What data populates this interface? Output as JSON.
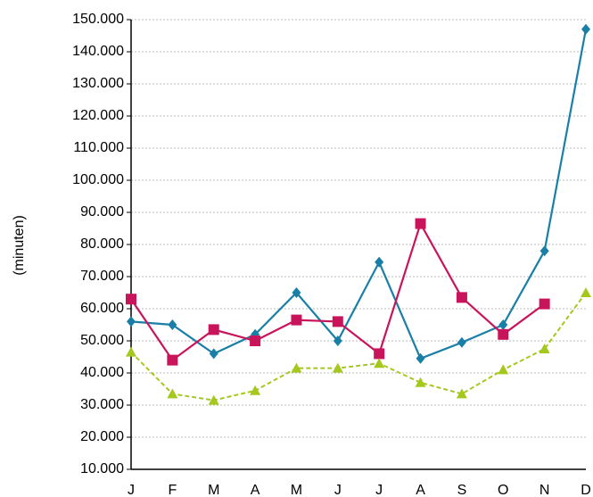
{
  "chart_data": {
    "type": "line",
    "y_label": "(minuten)",
    "categories": [
      "J",
      "F",
      "M",
      "A",
      "M",
      "J",
      "J",
      "A",
      "S",
      "O",
      "N",
      "D"
    ],
    "series": [
      {
        "color": "#1a7fa6",
        "marker": "diamond",
        "dash": false,
        "values": [
          56000,
          55000,
          46000,
          52000,
          65000,
          50000,
          74500,
          44500,
          49500,
          55000,
          78000,
          147000
        ]
      },
      {
        "color": "#c8145a",
        "marker": "square",
        "dash": false,
        "values": [
          63000,
          44000,
          53500,
          50000,
          56500,
          56000,
          46000,
          86500,
          63500,
          52000,
          61500,
          null
        ]
      },
      {
        "color": "#a5c81e",
        "marker": "triangle",
        "dash": true,
        "values": [
          46500,
          33500,
          31500,
          34500,
          41500,
          41500,
          43000,
          37000,
          33500,
          41000,
          47500,
          65000
        ]
      }
    ],
    "ylim": [
      10000,
      150000
    ],
    "yticks": [
      {
        "value": 10000,
        "label": "10.000"
      },
      {
        "value": 20000,
        "label": "20.000"
      },
      {
        "value": 30000,
        "label": "30.000"
      },
      {
        "value": 40000,
        "label": "40.000"
      },
      {
        "value": 50000,
        "label": "50.000"
      },
      {
        "value": 60000,
        "label": "60.000"
      },
      {
        "value": 70000,
        "label": "70.000"
      },
      {
        "value": 80000,
        "label": "80.000"
      },
      {
        "value": 90000,
        "label": "90.000"
      },
      {
        "value": 100000,
        "label": "100.000"
      },
      {
        "value": 110000,
        "label": "110.000"
      },
      {
        "value": 120000,
        "label": "120.000"
      },
      {
        "value": 130000,
        "label": "130.000"
      },
      {
        "value": 140000,
        "label": "140.000"
      },
      {
        "value": 150000,
        "label": "150.000"
      }
    ],
    "grid": true
  }
}
